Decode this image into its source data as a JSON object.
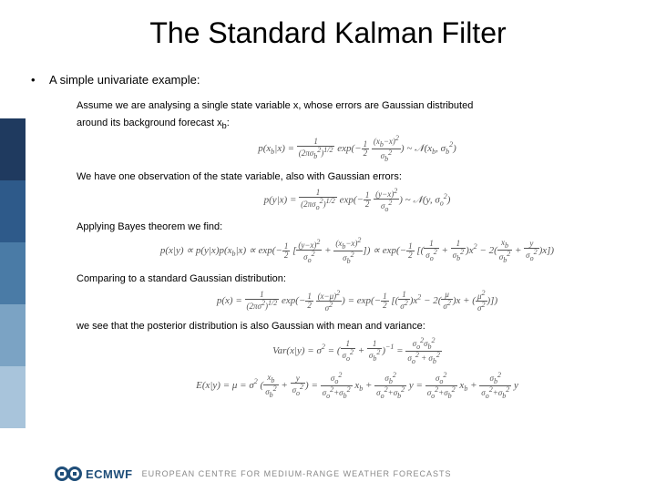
{
  "title": "The Standard Kalman Filter",
  "bullet": "A simple univariate example:",
  "paragraphs": {
    "p1a": "Assume we are analysing a single state variable x, whose errors are Gaussian distributed",
    "p1b": "around its background forecast x_b:",
    "p2": "We have one observation of the state variable, also with Gaussian errors:",
    "p3": "Applying Bayes theorem we find:",
    "p4": "Comparing to a standard Gaussian distribution:",
    "p5": "we see that the posterior distribution is also Gaussian with mean and variance:"
  },
  "equations": {
    "e1": "p(x_b|x) = 1/(2πσ_b²)^{1/2} · exp(−½ (x_b−x)²/σ_b²) ~ 𝒩(x_b, σ_b²)",
    "e2": "p(y|x) = 1/(2πσ_o²)^{1/2} · exp(−½ (y−x)²/σ_o²) ~ 𝒩(y, σ_o²)",
    "e3": "p(x|y) ∝ p(y|x)p(x_b|x) ∝ exp(−½[(y−x)²/σ_o² + (x_b−x)²/σ_b²]) ∝ exp(−½[(1/σ_o² + 1/σ_b²)x² − 2(x_b/σ_b² + y/σ_o²)x])",
    "e4": "p(x) = 1/(2πσ²)^{1/2} · exp(−½ (x−μ)²/σ²) = exp(−½[(1/σ²)x² − 2(μ/σ²)x + μ²/σ²])",
    "e5a": "Var(x|y) = σ² = (1/σ_o² + 1/σ_b²)⁻¹ = σ_o²σ_b² / (σ_o² + σ_b²)",
    "e5b": "E(x|y) = μ = σ²(x_b/σ_b² + y/σ_o²) = σ_o²/(σ_o²+σ_b²) · x_b + σ_b²/(σ_o²+σ_b²) · y = σ_o²/(σ_o²+σ_b²) x_b + σ_b²/(σ_o²+σ_b²) y"
  },
  "footer": {
    "brand": "ECMWF",
    "tagline": "EUROPEAN CENTRE FOR MEDIUM-RANGE WEATHER FORECASTS"
  },
  "colors": {
    "stripe1": "#1f3a5f",
    "stripe2": "#2e5a8a",
    "stripe3": "#4a7ba6",
    "stripe4": "#7ba3c4",
    "stripe5": "#a8c4db",
    "brand": "#1f4e79",
    "text": "#000000",
    "eq": "#555555"
  }
}
